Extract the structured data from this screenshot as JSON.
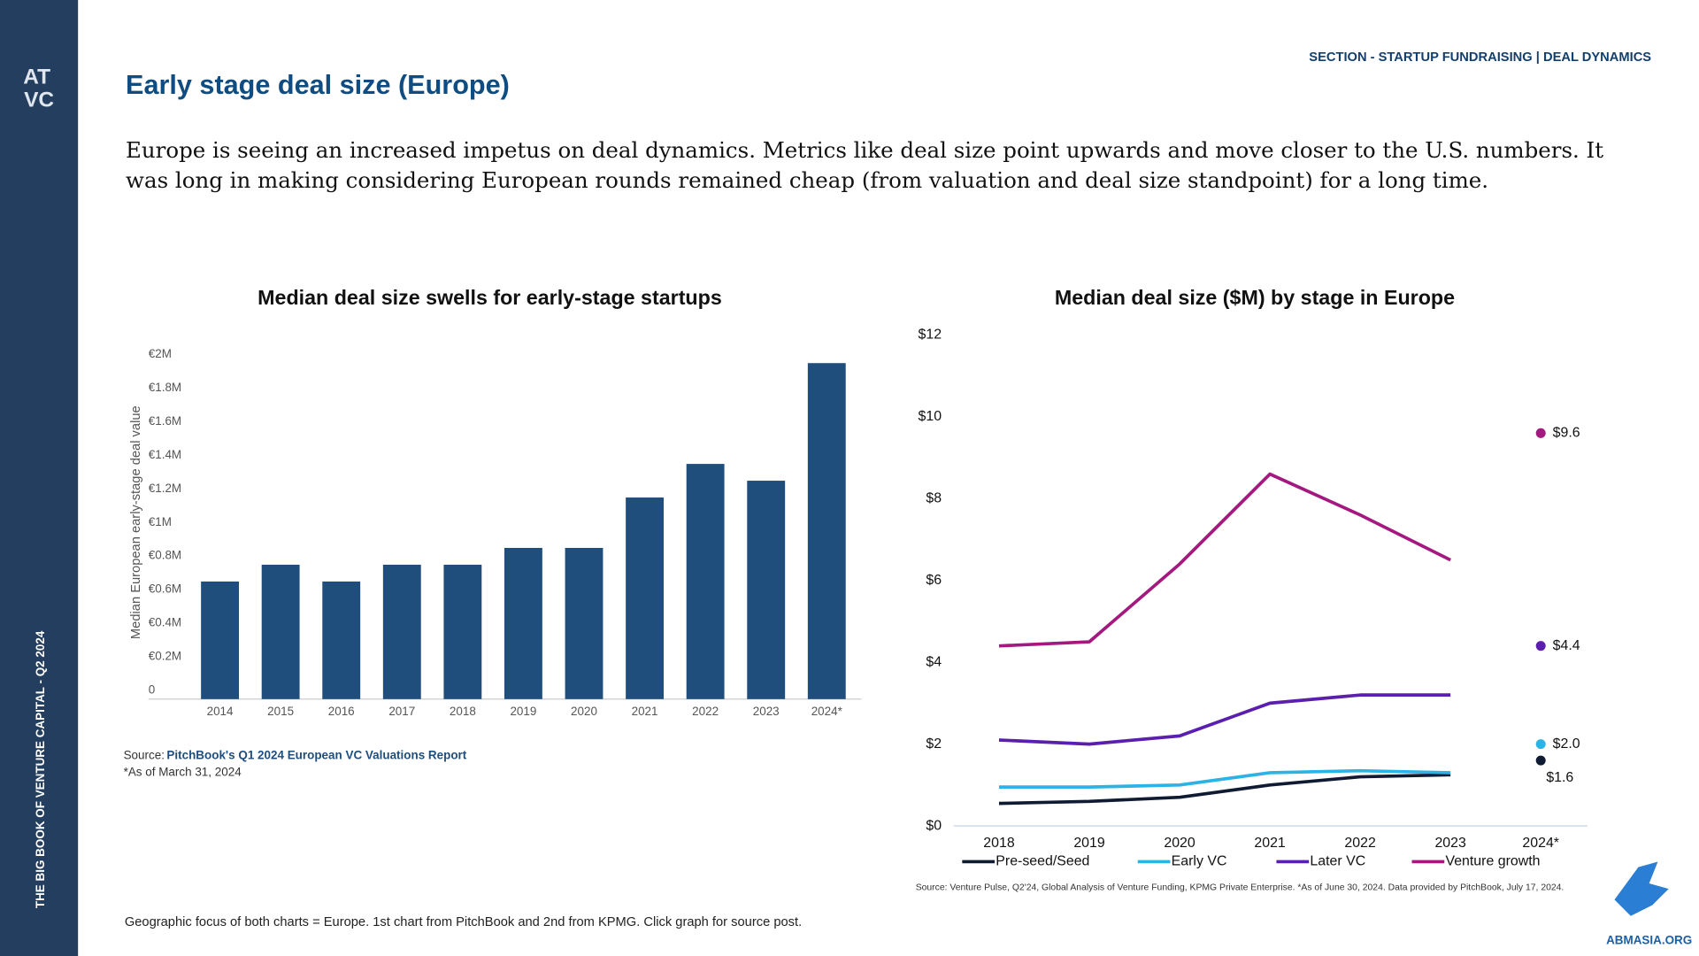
{
  "slide": {
    "logo_top": "AT",
    "logo_bottom": "VC",
    "sidebar_text": "THE BIG BOOK OF VENTURE CAPITAL - Q2 2024",
    "section": "SECTION - STARTUP FUNDRAISING | DEAL DYNAMICS",
    "title": "Early stage deal size (Europe)",
    "body_lines": [
      "Europe is seeing an increased impetus on deal dynamics. Metrics like deal size point upwards and move closer to the U.S. numbers. It",
      "was long in making considering European rounds remained cheap (from valuation and deal size standpoint) for a long time."
    ],
    "footer": "Geographic focus of both charts = Europe. 1st chart from PitchBook and 2nd from KPMG. Click graph for source post.",
    "watermark": "ABMASIA.ORG"
  },
  "chart_data": [
    {
      "type": "bar",
      "title": "Median deal size swells for early-stage startups",
      "y_label": "Median European early-stage deal value",
      "categories": [
        "2014",
        "2015",
        "2016",
        "2017",
        "2018",
        "2019",
        "2020",
        "2021",
        "2022",
        "2023",
        "2024*"
      ],
      "values": [
        0.7,
        0.8,
        0.7,
        0.8,
        0.8,
        0.9,
        0.9,
        1.2,
        1.4,
        1.3,
        2.0
      ],
      "color": "#1f4e7d",
      "ylim": [
        0,
        2
      ],
      "yticks": [
        0,
        {
          "value": 0.2,
          "label": "€0.2M"
        },
        {
          "value": 0.4,
          "label": "€0.4M"
        },
        {
          "value": 0.6,
          "label": "€0.6M"
        },
        {
          "value": 0.8,
          "label": "€0.8M"
        },
        {
          "value": 1,
          "label": "€1M"
        },
        {
          "value": 1.2,
          "label": "€1.2M"
        },
        {
          "value": 1.4,
          "label": "€1.4M"
        },
        {
          "value": 1.6,
          "label": "€1.6M"
        },
        {
          "value": 1.8,
          "label": "€1.8M"
        },
        {
          "value": 2,
          "label": "€2M"
        }
      ],
      "grid": false,
      "source_prefix": "Source:",
      "source_link": "PitchBook's Q1 2024 European VC Valuations Report",
      "note": "*As of March 31, 2024"
    },
    {
      "type": "line",
      "title": "Median deal size ($M) by stage in Europe",
      "categories": [
        "2018",
        "2019",
        "2020",
        "2021",
        "2022",
        "2023",
        "2024*"
      ],
      "series": [
        {
          "name": "Pre-seed/Seed",
          "color": "#0f1b33",
          "values": [
            0.55,
            0.6,
            0.7,
            1.0,
            1.2,
            1.25,
            1.6
          ],
          "value_labels": [
            null,
            null,
            null,
            null,
            null,
            null,
            "$1.6"
          ]
        },
        {
          "name": "Early VC",
          "color": "#2bb3e6",
          "values": [
            0.95,
            0.95,
            1.0,
            1.3,
            1.35,
            1.3,
            2.0
          ],
          "value_labels": [
            null,
            null,
            null,
            null,
            null,
            null,
            "$2.0"
          ]
        },
        {
          "name": "Later VC",
          "color": "#5b1fb0",
          "values": [
            2.1,
            2.0,
            2.2,
            3.0,
            3.2,
            3.2,
            4.4
          ],
          "value_labels": [
            null,
            null,
            null,
            null,
            null,
            null,
            "$4.4"
          ]
        },
        {
          "name": "Venture growth",
          "color": "#a3197f",
          "values": [
            4.4,
            4.5,
            6.4,
            8.6,
            7.6,
            6.5,
            9.6
          ],
          "value_labels": [
            null,
            null,
            null,
            null,
            null,
            null,
            "$9.6"
          ]
        }
      ],
      "ylim": [
        0,
        12
      ],
      "yticks": [
        {
          "value": 0,
          "label": "$0"
        },
        {
          "value": 2,
          "label": "$2"
        },
        {
          "value": 4,
          "label": "$4"
        },
        {
          "value": 6,
          "label": "$6"
        },
        {
          "value": 8,
          "label": "$8"
        },
        {
          "value": 10,
          "label": "$10"
        },
        {
          "value": 12,
          "label": "$12"
        }
      ],
      "legend": "bottom",
      "source": "Source: Venture Pulse, Q2'24, Global Analysis of Venture Funding, KPMG Private Enterprise. *As of June 30, 2024. Data provided by PitchBook, July 17, 2024."
    }
  ]
}
